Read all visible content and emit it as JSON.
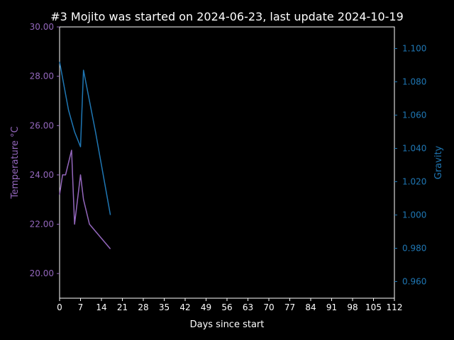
{
  "chart_data": {
    "type": "line",
    "title": "#3 Mojito was started on 2024-06-23, last update 2024-10-19",
    "xlabel": "Days since start",
    "xlim": [
      0,
      112
    ],
    "xticks": [
      0,
      7,
      14,
      21,
      28,
      35,
      42,
      49,
      56,
      63,
      70,
      77,
      84,
      91,
      98,
      105,
      112
    ],
    "xtick_labels": [
      "0",
      "7",
      "14",
      "21",
      "28",
      "35",
      "42",
      "49",
      "56",
      "63",
      "70",
      "77",
      "84",
      "91",
      "98",
      "105",
      "112"
    ],
    "y_left": {
      "label": "Temperature °C",
      "color": "#9467bd",
      "lim": [
        19.0,
        30.0
      ],
      "ticks": [
        20,
        22,
        24,
        26,
        28,
        30
      ],
      "tick_labels": [
        "20.00",
        "22.00",
        "24.00",
        "26.00",
        "28.00",
        "30.00"
      ]
    },
    "y_right": {
      "label": "Gravity",
      "color": "#1f77b4",
      "lim": [
        0.95,
        1.113
      ],
      "ticks": [
        0.96,
        0.98,
        1.0,
        1.02,
        1.04,
        1.06,
        1.08,
        1.1
      ],
      "tick_labels": [
        "0.960",
        "0.980",
        "1.000",
        "1.020",
        "1.040",
        "1.060",
        "1.080",
        "1.100"
      ]
    },
    "series": [
      {
        "axis": "left",
        "color": "#9467bd",
        "x": [
          0,
          1,
          2,
          4,
          5,
          7,
          8,
          10,
          17
        ],
        "y": [
          23.2,
          24.0,
          24.0,
          25.0,
          22.0,
          24.0,
          23.0,
          22.0,
          21.0
        ]
      },
      {
        "axis": "right",
        "color": "#1f77b4",
        "x": [
          0,
          3,
          5,
          7,
          8,
          12,
          17
        ],
        "y": [
          1.092,
          1.063,
          1.05,
          1.041,
          1.087,
          1.05,
          1.0
        ]
      }
    ],
    "grid": false
  }
}
